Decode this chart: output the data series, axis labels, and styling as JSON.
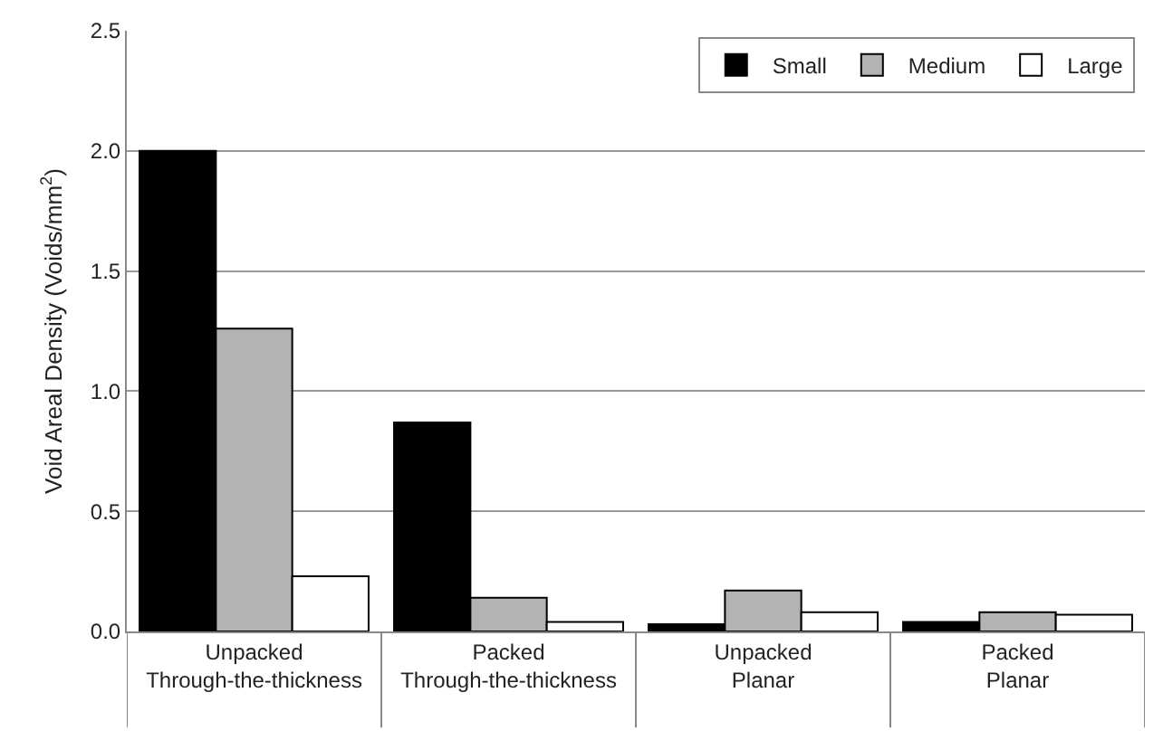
{
  "chart_data": {
    "type": "bar",
    "ylabel": "Void Areal Density (Voids/mm$^{2}$)",
    "categories": [
      "Unpacked\nThrough-the-thickness",
      "Packed\nThrough-the-thickness",
      "Unpacked\nPlanar",
      "Packed\nPlanar"
    ],
    "series": [
      {
        "name": "Small",
        "color": "#000000",
        "values": [
          2.0,
          0.87,
          0.03,
          0.04
        ]
      },
      {
        "name": "Medium",
        "color": "#b3b3b3",
        "values": [
          1.26,
          0.14,
          0.17,
          0.08
        ]
      },
      {
        "name": "Large",
        "color": "#ffffff",
        "values": [
          0.23,
          0.04,
          0.08,
          0.07
        ]
      }
    ],
    "ylim": [
      0,
      2.5
    ],
    "yticks": [
      {
        "value": 0,
        "label": "0.0"
      },
      {
        "value": 0.5,
        "label": "0.5"
      },
      {
        "value": 1,
        "label": "1.0"
      },
      {
        "value": 1.5,
        "label": "1.5"
      },
      {
        "value": 2,
        "label": "2.0"
      },
      {
        "value": 2.5,
        "label": "2.5"
      }
    ],
    "grid": "y",
    "legend": "top right"
  }
}
